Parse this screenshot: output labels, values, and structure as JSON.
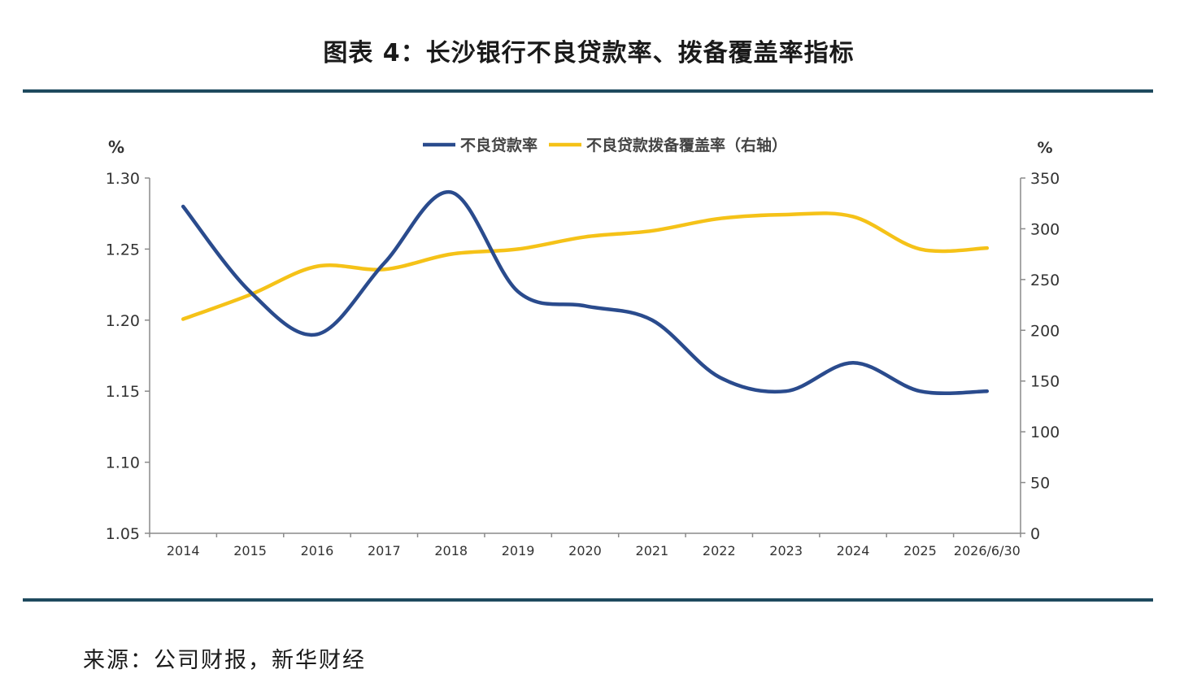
{
  "title": "图表 4：长沙银行不良贷款率、拨备覆盖率指标",
  "source": "来源：公司财报，新华财经",
  "chart_data": {
    "type": "line",
    "categories": [
      "2014",
      "2015",
      "2016",
      "2017",
      "2018",
      "2019",
      "2020",
      "2021",
      "2022",
      "2023",
      "2024",
      "2025",
      "2026/6/30"
    ],
    "left_axis": {
      "unit": "%",
      "ylim": [
        1.05,
        1.3
      ],
      "ticks": [
        "1.30",
        "1.25",
        "1.20",
        "1.15",
        "1.10",
        "1.05"
      ]
    },
    "right_axis": {
      "unit": "%",
      "ylim": [
        0,
        350
      ],
      "ticks": [
        "350",
        "300",
        "250",
        "200",
        "150",
        "100",
        "50",
        "0"
      ]
    },
    "series": [
      {
        "name": "不良贷款率",
        "axis": "left",
        "color": "#2a4b8d",
        "values": [
          1.28,
          1.22,
          1.19,
          1.24,
          1.29,
          1.22,
          1.21,
          1.2,
          1.16,
          1.15,
          1.17,
          1.15,
          1.15
        ]
      },
      {
        "name": "不良贷款拨备覆盖率（右轴）",
        "axis": "right",
        "color": "#f5c218",
        "values": [
          211,
          235,
          263,
          260,
          275,
          280,
          292,
          298,
          310,
          314,
          312,
          280,
          281
        ]
      }
    ],
    "grid": false,
    "legend": "top-center"
  }
}
